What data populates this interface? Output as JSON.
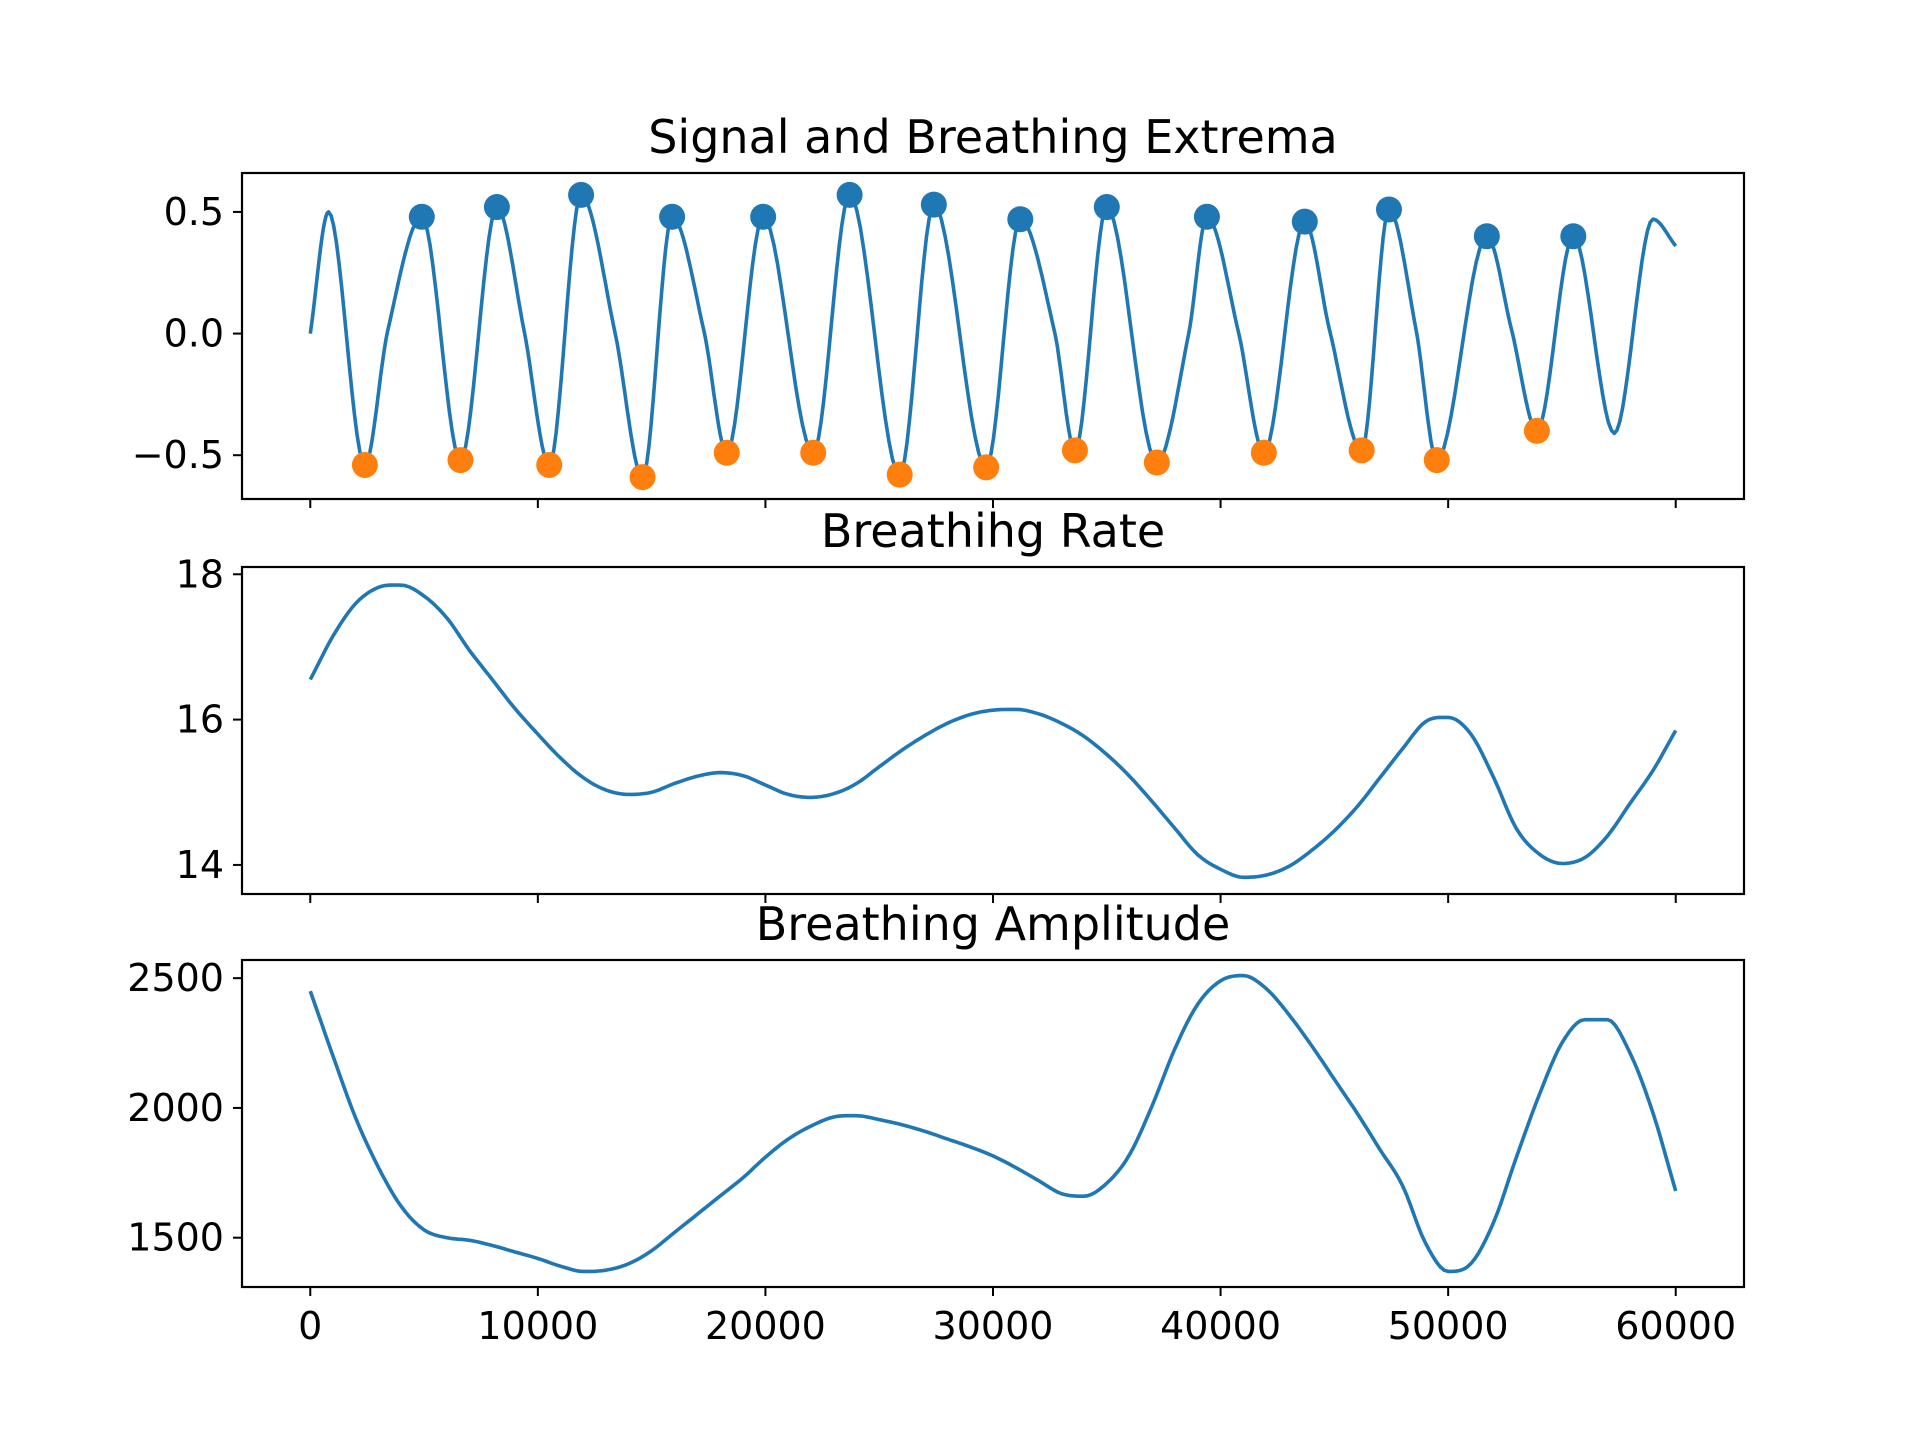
{
  "chart_data": [
    {
      "type": "line",
      "title": "Signal and Breathing Extrema",
      "xlabel": "",
      "ylabel": "",
      "xlim": [
        -3000,
        63000
      ],
      "ylim": [
        -0.68,
        0.66
      ],
      "yticks": [
        0.5,
        0.0,
        -0.5
      ],
      "ytick_labels": [
        "0.5",
        "0.0",
        "−0.5"
      ],
      "xticks": [
        0,
        10000,
        20000,
        30000,
        40000,
        50000,
        60000
      ],
      "show_xtick_labels": false,
      "grid": false,
      "line_color": "#1f77b4",
      "peak_color": "#1f77b4",
      "trough_color": "#ff7f0e",
      "series": [
        {
          "kind": "signal",
          "start_x": 0,
          "start_y": 0.0,
          "end_x": 60000,
          "end_y": 0.36,
          "tail_peak": {
            "x": 59000,
            "y": 0.47
          },
          "unmarked_extrema": [
            {
              "x": 800,
              "y": 0.5
            },
            {
              "x": 57300,
              "y": -0.41
            }
          ],
          "shoulders": [
            {
              "x": 3400,
              "y": 0.01
            },
            {
              "x": 9400,
              "y": 0.01
            },
            {
              "x": 13400,
              "y": 0.0
            },
            {
              "x": 17300,
              "y": 0.01
            },
            {
              "x": 32700,
              "y": 0.01
            },
            {
              "x": 38600,
              "y": 0.0
            },
            {
              "x": 40800,
              "y": 0.0
            },
            {
              "x": 44800,
              "y": 0.01
            },
            {
              "x": 48600,
              "y": 0.01
            },
            {
              "x": 52800,
              "y": 0.01
            }
          ]
        },
        {
          "kind": "peaks",
          "x": [
            4900,
            8200,
            11900,
            15900,
            19900,
            23700,
            27400,
            31200,
            35000,
            39400,
            43700,
            47400,
            51700,
            55500
          ],
          "y": [
            0.48,
            0.52,
            0.57,
            0.48,
            0.48,
            0.57,
            0.53,
            0.47,
            0.52,
            0.48,
            0.46,
            0.51,
            0.4,
            0.4
          ]
        },
        {
          "kind": "troughs",
          "x": [
            2400,
            6600,
            10500,
            14600,
            18300,
            22100,
            25900,
            29700,
            33600,
            37200,
            41900,
            46200,
            49500,
            53900
          ],
          "y": [
            -0.54,
            -0.52,
            -0.54,
            -0.59,
            -0.49,
            -0.49,
            -0.58,
            -0.55,
            -0.48,
            -0.53,
            -0.49,
            -0.48,
            -0.52,
            -0.4
          ]
        }
      ]
    },
    {
      "type": "line",
      "title": "Breathihg Rate",
      "xlabel": "",
      "ylabel": "",
      "xlim": [
        -3000,
        63000
      ],
      "ylim": [
        13.6,
        18.1
      ],
      "yticks": [
        18,
        16,
        14
      ],
      "ytick_labels": [
        "18",
        "16",
        "14"
      ],
      "xticks": [
        0,
        10000,
        20000,
        30000,
        40000,
        50000,
        60000
      ],
      "show_xtick_labels": false,
      "grid": false,
      "line_color": "#1f77b4",
      "series": [
        {
          "x": [
            0,
            1000,
            2000,
            3000,
            4000,
            5000,
            6000,
            7000,
            8000,
            9000,
            10000,
            11000,
            12000,
            13000,
            14000,
            15000,
            16000,
            17000,
            18000,
            19000,
            20000,
            21000,
            22000,
            23000,
            24000,
            25000,
            26000,
            27000,
            28000,
            29000,
            30000,
            31000,
            32000,
            33000,
            34000,
            35000,
            36000,
            37000,
            38000,
            39000,
            40000,
            41000,
            42000,
            43000,
            44000,
            45000,
            46000,
            47000,
            48000,
            49000,
            50000,
            51000,
            52000,
            53000,
            54000,
            55000,
            56000,
            57000,
            58000,
            59000,
            60000
          ],
          "y": [
            16.55,
            17.15,
            17.6,
            17.82,
            17.85,
            17.7,
            17.4,
            16.95,
            16.55,
            16.15,
            15.8,
            15.47,
            15.2,
            15.03,
            14.97,
            15.0,
            15.12,
            15.22,
            15.27,
            15.23,
            15.1,
            14.97,
            14.93,
            14.98,
            15.12,
            15.35,
            15.58,
            15.78,
            15.95,
            16.07,
            16.13,
            16.14,
            16.08,
            15.95,
            15.77,
            15.52,
            15.22,
            14.87,
            14.5,
            14.14,
            13.94,
            13.83,
            13.86,
            13.98,
            14.2,
            14.47,
            14.8,
            15.2,
            15.6,
            15.97,
            16.03,
            15.8,
            15.2,
            14.5,
            14.15,
            14.02,
            14.1,
            14.4,
            14.85,
            15.3,
            15.85
          ]
        }
      ]
    },
    {
      "type": "line",
      "title": "Breathing Amplitude",
      "xlabel": "",
      "ylabel": "",
      "xlim": [
        -3000,
        63000
      ],
      "ylim": [
        1310,
        2570
      ],
      "yticks": [
        2500,
        2000,
        1500
      ],
      "ytick_labels": [
        "2500",
        "2000",
        "1500"
      ],
      "xticks": [
        0,
        10000,
        20000,
        30000,
        40000,
        50000,
        60000
      ],
      "xtick_labels": [
        "0",
        "10000",
        "20000",
        "30000",
        "40000",
        "50000",
        "60000"
      ],
      "show_xtick_labels": true,
      "grid": false,
      "line_color": "#1f77b4",
      "series": [
        {
          "x": [
            0,
            1000,
            2000,
            3000,
            4000,
            5000,
            6000,
            7000,
            8000,
            9000,
            10000,
            11000,
            12000,
            13000,
            14000,
            15000,
            16000,
            17000,
            18000,
            19000,
            20000,
            21000,
            22000,
            23000,
            24000,
            25000,
            26000,
            27000,
            28000,
            29000,
            30000,
            31000,
            32000,
            33000,
            34000,
            35000,
            36000,
            37000,
            38000,
            39000,
            40000,
            41000,
            42000,
            43000,
            44000,
            45000,
            46000,
            47000,
            48000,
            49000,
            50000,
            51000,
            52000,
            53000,
            54000,
            55000,
            56000,
            57000,
            58000,
            59000,
            60000
          ],
          "y": [
            2450,
            2200,
            1960,
            1770,
            1620,
            1530,
            1500,
            1490,
            1470,
            1445,
            1420,
            1390,
            1370,
            1375,
            1400,
            1450,
            1520,
            1590,
            1660,
            1730,
            1810,
            1880,
            1930,
            1965,
            1970,
            1955,
            1935,
            1910,
            1880,
            1850,
            1815,
            1770,
            1720,
            1670,
            1660,
            1710,
            1820,
            2010,
            2230,
            2400,
            2490,
            2510,
            2460,
            2360,
            2240,
            2110,
            1980,
            1840,
            1700,
            1480,
            1370,
            1400,
            1560,
            1810,
            2050,
            2250,
            2340,
            2340,
            2210,
            1980,
            1680
          ]
        }
      ]
    }
  ]
}
